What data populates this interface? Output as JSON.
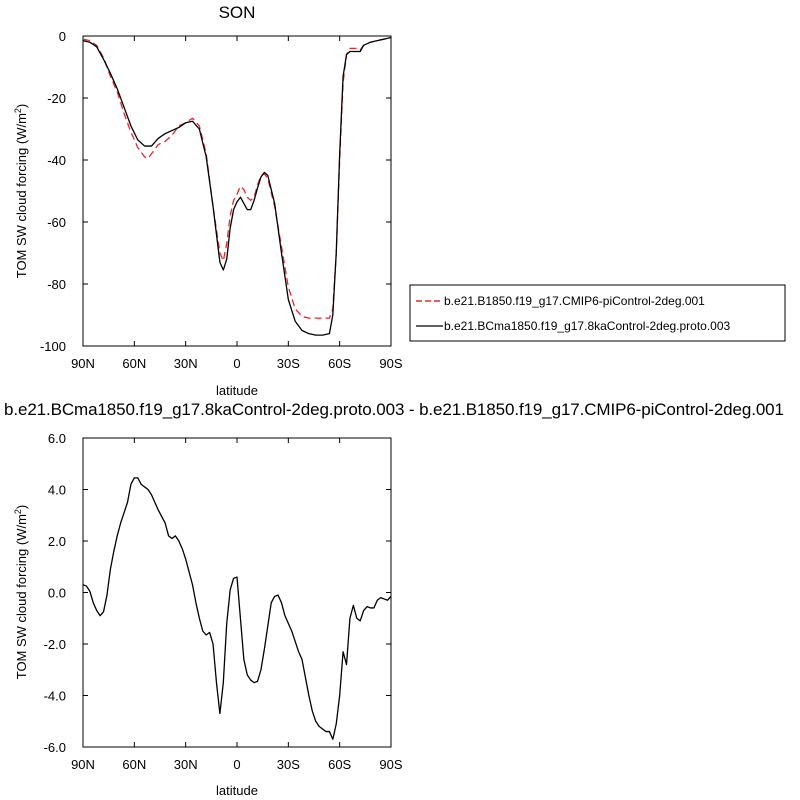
{
  "chart_data": [
    {
      "type": "line",
      "title": "SON",
      "xlabel": "latitude",
      "ylabel": "TOM SW cloud forcing (W/m",
      "ylabel_sup": "2",
      "ylabel_close": ")",
      "xlim": [
        90,
        -90
      ],
      "ylim": [
        -100,
        0
      ],
      "xticks": [
        {
          "value": 90,
          "label": "90N"
        },
        {
          "value": 60,
          "label": "60N"
        },
        {
          "value": 30,
          "label": "30N"
        },
        {
          "value": 0,
          "label": "0"
        },
        {
          "value": -30,
          "label": "30S"
        },
        {
          "value": -60,
          "label": "60S"
        },
        {
          "value": -90,
          "label": "90S"
        }
      ],
      "yticks": [
        {
          "value": 0,
          "label": "0"
        },
        {
          "value": -20,
          "label": "-20"
        },
        {
          "value": -40,
          "label": "-40"
        },
        {
          "value": -60,
          "label": "-60"
        },
        {
          "value": -80,
          "label": "-80"
        },
        {
          "value": -100,
          "label": "-100"
        }
      ],
      "legend_position": "right",
      "series": [
        {
          "name": "b.e21.B1850.f19_g17.CMIP6-piControl-2deg.001",
          "color": "#e8262b",
          "dash": "dashed",
          "x": [
            90,
            86,
            82,
            78,
            74,
            70,
            66,
            62,
            58,
            54,
            52,
            50,
            46,
            42,
            38,
            34,
            30,
            26,
            22,
            18,
            14,
            10,
            8,
            6,
            4,
            2,
            0,
            -2,
            -4,
            -6,
            -8,
            -10,
            -12,
            -14,
            -16,
            -18,
            -22,
            -26,
            -30,
            -34,
            -38,
            -42,
            -46,
            -50,
            -54,
            -56,
            -58,
            -60,
            -62,
            -64,
            -66,
            -70,
            -72,
            -74,
            -78,
            -82,
            -86,
            -90
          ],
          "y": [
            -1,
            -1.5,
            -3,
            -7,
            -13,
            -18,
            -25,
            -31,
            -36,
            -39,
            -39.5,
            -38,
            -35,
            -34,
            -32,
            -29,
            -28,
            -26.5,
            -29,
            -38,
            -55,
            -70,
            -72.5,
            -67,
            -58,
            -53,
            -51,
            -48.5,
            -49.5,
            -52,
            -53,
            -52,
            -48,
            -45,
            -44.5,
            -46,
            -55,
            -68,
            -81,
            -88,
            -90.5,
            -91,
            -91,
            -91,
            -91,
            -88,
            -70,
            -40,
            -15,
            -6,
            -4,
            -4,
            -4.5,
            -3,
            -2,
            -1.5,
            -1,
            -0.5
          ]
        },
        {
          "name": "b.e21.BCma1850.f19_g17.8kaControl-2deg.proto.003",
          "color": "#000000",
          "dash": "solid",
          "x": [
            90,
            86,
            82,
            78,
            74,
            70,
            66,
            62,
            58,
            54,
            50,
            46,
            42,
            38,
            34,
            30,
            26,
            22,
            18,
            14,
            10,
            8,
            6,
            4,
            2,
            0,
            -2,
            -4,
            -6,
            -8,
            -10,
            -12,
            -14,
            -16,
            -18,
            -22,
            -26,
            -30,
            -34,
            -38,
            -42,
            -46,
            -50,
            -54,
            -56,
            -58,
            -60,
            -62,
            -64,
            -66,
            -70,
            -72,
            -74,
            -78,
            -82,
            -86,
            -90
          ],
          "y": [
            -1.5,
            -2,
            -3.5,
            -7.5,
            -12,
            -17,
            -23,
            -29,
            -33.5,
            -35.5,
            -35.5,
            -33,
            -31.5,
            -30.5,
            -29.5,
            -28,
            -27.5,
            -30,
            -39,
            -55,
            -73,
            -75.5,
            -72,
            -62,
            -56,
            -53.5,
            -52,
            -54,
            -56,
            -56,
            -53,
            -49,
            -45.5,
            -44,
            -45,
            -54,
            -70,
            -85,
            -92,
            -95,
            -96,
            -96.5,
            -96.5,
            -96,
            -90,
            -70,
            -38,
            -13,
            -6,
            -5,
            -5,
            -5,
            -3,
            -2,
            -1.5,
            -1,
            -0.5
          ]
        }
      ]
    },
    {
      "type": "line",
      "title": "b.e21.BCma1850.f19_g17.8kaControl-2deg.proto.003 - b.e21.B1850.f19_g17.CMIP6-piControl-2deg.001",
      "xlabel": "latitude",
      "ylabel": "TOM SW cloud forcing (W/m",
      "ylabel_sup": "2",
      "ylabel_close": ")",
      "xlim": [
        90,
        -90
      ],
      "ylim": [
        -6,
        6
      ],
      "xticks": [
        {
          "value": 90,
          "label": "90N"
        },
        {
          "value": 60,
          "label": "60N"
        },
        {
          "value": 30,
          "label": "30N"
        },
        {
          "value": 0,
          "label": "0"
        },
        {
          "value": -30,
          "label": "30S"
        },
        {
          "value": -60,
          "label": "60S"
        },
        {
          "value": -90,
          "label": "90S"
        }
      ],
      "yticks": [
        {
          "value": 6,
          "label": "6.0"
        },
        {
          "value": 4,
          "label": "4.0"
        },
        {
          "value": 2,
          "label": "2.0"
        },
        {
          "value": 0,
          "label": "0.0"
        },
        {
          "value": -2,
          "label": "-2.0"
        },
        {
          "value": -4,
          "label": "-4.0"
        },
        {
          "value": -6,
          "label": "-6.0"
        }
      ],
      "series": [
        {
          "color": "#000000",
          "dash": "solid",
          "x": [
            90,
            88,
            86,
            84,
            82,
            80,
            78,
            76,
            74,
            72,
            70,
            68,
            66,
            64,
            62,
            60,
            58,
            56,
            54,
            52,
            50,
            48,
            46,
            44,
            42,
            40,
            38,
            36,
            34,
            32,
            30,
            28,
            26,
            24,
            22,
            20,
            18,
            16,
            14,
            12,
            10,
            8,
            6,
            4,
            2,
            0,
            -2,
            -4,
            -6,
            -8,
            -10,
            -12,
            -14,
            -16,
            -18,
            -20,
            -22,
            -24,
            -26,
            -28,
            -30,
            -32,
            -34,
            -36,
            -38,
            -40,
            -42,
            -44,
            -46,
            -48,
            -50,
            -52,
            -54,
            -56,
            -58,
            -60,
            -62,
            -64,
            -66,
            -68,
            -70,
            -72,
            -74,
            -76,
            -78,
            -80,
            -82,
            -84,
            -86,
            -88,
            -90
          ],
          "y": [
            0.3,
            0.25,
            0.05,
            -0.4,
            -0.7,
            -0.9,
            -0.75,
            -0.1,
            0.9,
            1.6,
            2.2,
            2.7,
            3.1,
            3.5,
            4.2,
            4.45,
            4.45,
            4.2,
            4.1,
            4.0,
            3.8,
            3.5,
            3.2,
            2.95,
            2.7,
            2.2,
            2.1,
            2.2,
            2.0,
            1.7,
            1.3,
            0.8,
            0.3,
            -0.4,
            -1.0,
            -1.5,
            -1.65,
            -1.55,
            -2.0,
            -3.5,
            -4.7,
            -3.5,
            -1.2,
            0.1,
            0.55,
            0.6,
            -1.0,
            -2.6,
            -3.2,
            -3.4,
            -3.5,
            -3.45,
            -3.0,
            -2.2,
            -1.3,
            -0.4,
            -0.15,
            -0.1,
            -0.4,
            -0.9,
            -1.2,
            -1.5,
            -1.9,
            -2.3,
            -2.6,
            -3.3,
            -4.0,
            -4.6,
            -5.0,
            -5.2,
            -5.3,
            -5.4,
            -5.4,
            -5.7,
            -5.1,
            -4.0,
            -2.3,
            -2.8,
            -1.0,
            -0.5,
            -1.0,
            -1.1,
            -0.7,
            -0.55,
            -0.6,
            -0.6,
            -0.3,
            -0.2,
            -0.25,
            -0.3,
            -0.15
          ]
        }
      ]
    }
  ]
}
